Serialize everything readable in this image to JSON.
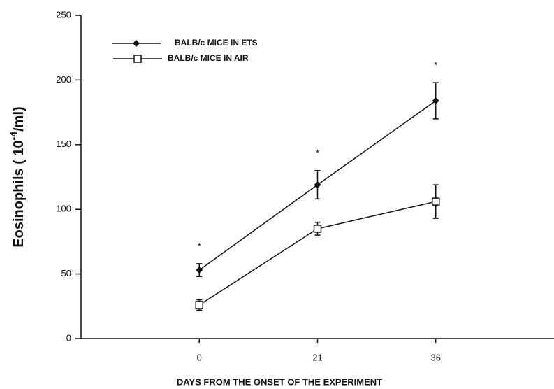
{
  "chart_data": {
    "type": "line",
    "x_label": "DAYS FROM THE ONSET OF THE EXPERIMENT",
    "y_label": {
      "text": "Eosinophils ( 10",
      "superscript": "-4",
      "suffix": "/ml)"
    },
    "categories": [
      "0",
      "21",
      "36"
    ],
    "series": [
      {
        "name": "BALB/c MICE IN ETS",
        "color": "#111111",
        "marker": "filled-diamond",
        "values": [
          53,
          119,
          184
        ],
        "errors": [
          5,
          11,
          14
        ]
      },
      {
        "name": "BALB/c MICE IN  AIR",
        "color": "#111111",
        "marker": "open-square",
        "values": [
          26,
          85,
          106
        ],
        "errors": [
          4,
          5,
          13
        ]
      }
    ],
    "annotations": [
      "*",
      "*",
      "*"
    ],
    "ylim": [
      0,
      250
    ],
    "yticks": [
      0,
      50,
      100,
      150,
      200,
      250
    ],
    "grid": false
  }
}
